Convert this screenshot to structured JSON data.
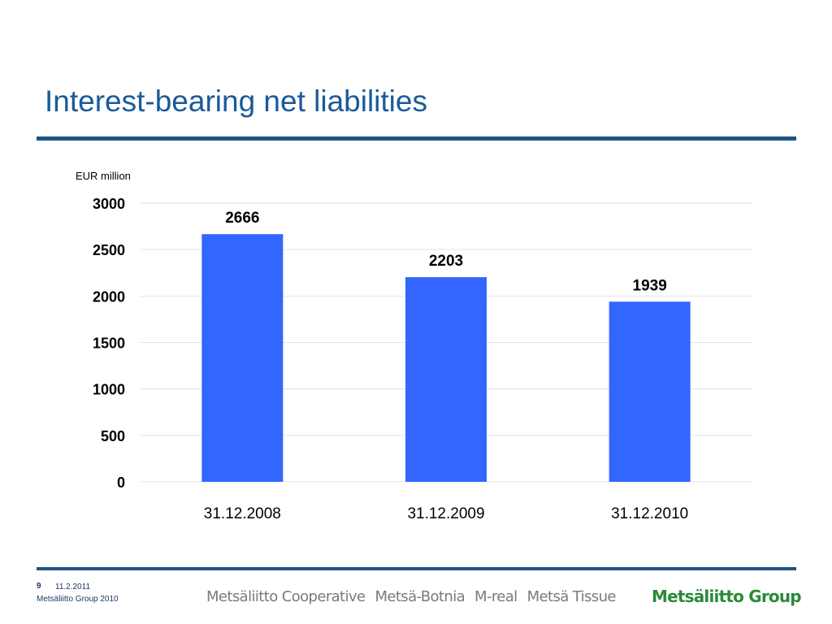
{
  "slide": {
    "title": "Interest-bearing net liabilities",
    "page_number": "9",
    "date": "11.2.2011",
    "company": "Metsäliitto Group 2010",
    "brands": [
      "Metsäliitto Cooperative",
      "Metsä-Botnia",
      "M-real",
      "Metsä Tissue"
    ],
    "group_logo": "Metsäliitto Group"
  },
  "colors": {
    "title": "#1a5a9a",
    "rule": "#1f5582",
    "bar": "#3366ff",
    "logo": "#2a8a3a"
  },
  "chart_data": {
    "type": "bar",
    "title": "",
    "unit_label": "EUR million",
    "categories": [
      "31.12.2008",
      "31.12.2009",
      "31.12.2010"
    ],
    "values": [
      2666,
      2203,
      1939
    ],
    "data_labels": [
      "2666",
      "2203",
      "1939"
    ],
    "yticks": [
      "0",
      "500",
      "1000",
      "1500",
      "2000",
      "2500",
      "3000"
    ],
    "ylim": [
      0,
      3000
    ],
    "grid": true,
    "legend": "none"
  }
}
